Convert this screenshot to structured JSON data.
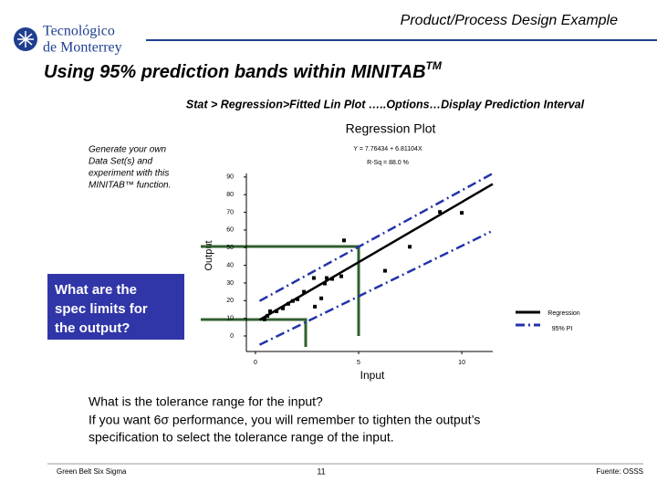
{
  "header": {
    "title": "Product/Process Design Example",
    "logo": [
      "Tecnológico",
      "de Monterrey"
    ]
  },
  "slide": {
    "title": "Using 95% prediction bands within MINITAB",
    "title_mark": "TM",
    "menu_path": "Stat > Regression>Fitted Lin Plot …..Options…Display Prediction Interval",
    "note": [
      "Generate your own",
      "Data Set(s) and",
      "experiment with this",
      "MINITAB™ function."
    ],
    "question": [
      "What are the",
      "spec limits for",
      "the output?"
    ],
    "body": [
      "What is the tolerance range for the input?",
      "If you want 6σ performance, you will remember to tighten the output’s",
      "specification to select the tolerance range of the input."
    ]
  },
  "footer": {
    "left": "Green Belt Six Sigma",
    "page": "11",
    "source": "Fuente: OSSS"
  },
  "chart_data": {
    "type": "scatter",
    "title": "Regression Plot",
    "equation": "Y = 7.76434 + 6.81104X",
    "r_squared": "R-Sq = 88.0 %",
    "x_label": "Input",
    "y_label": "Output",
    "xlim": [
      -0.44,
      11.5
    ],
    "ylim": [
      -8.8,
      92
    ],
    "xticks": [
      0,
      5,
      10
    ],
    "yticks": [
      0,
      10,
      20,
      30,
      40,
      50,
      60,
      70,
      80,
      90
    ],
    "points": {
      "color": "#000000",
      "x": [
        0.44,
        0.58,
        0.71,
        1.02,
        1.33,
        1.59,
        1.81,
        2.04,
        2.35,
        2.88,
        3.19,
        3.36,
        2.83,
        3.45,
        3.72,
        4.16,
        4.29,
        6.28,
        7.48,
        8.94,
        10.0
      ],
      "y": [
        9.4,
        11.4,
        14.0,
        14.0,
        15.6,
        18.2,
        19.8,
        20.8,
        25.0,
        16.6,
        21.3,
        29.7,
        32.8,
        32.8,
        32.3,
        33.8,
        54.1,
        36.9,
        50.5,
        70.2,
        69.7
      ]
    },
    "lines": [
      {
        "name": "Regression",
        "color": "#000000",
        "x": [
          0.2,
          11.5
        ],
        "values": [
          9.1,
          86
        ]
      },
      {
        "name": "95% PI",
        "color": "#2233aa",
        "upper": {
          "x": [
            0.2,
            11.5
          ],
          "values": [
            19.8,
            92
          ]
        },
        "lower": {
          "x": [
            0.2,
            11.4
          ],
          "values": [
            -5,
            59
          ]
        }
      }
    ]
  }
}
